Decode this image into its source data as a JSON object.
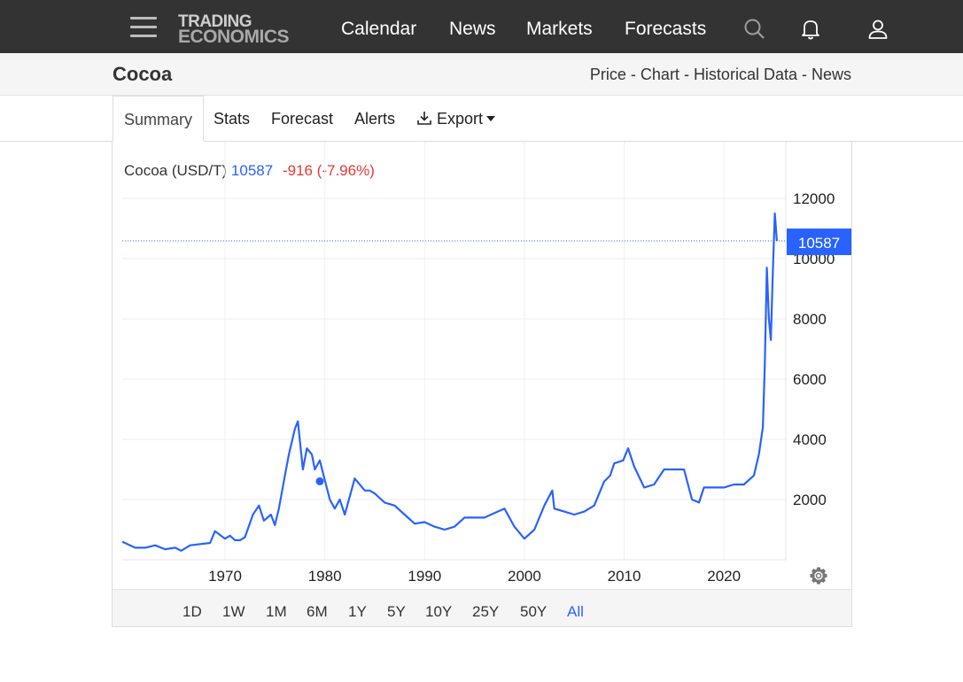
{
  "nav": {
    "menu_icon": "hamburger-menu-icon",
    "logo_top": "TRADING",
    "logo_bottom": "ECONOMICS",
    "links": [
      "Calendar",
      "News",
      "Markets",
      "Forecasts"
    ],
    "icons": [
      "search-icon",
      "bell-icon",
      "user-icon"
    ]
  },
  "header": {
    "title": "Cocoa",
    "links": [
      "Price",
      "Chart",
      "Historical Data",
      "News"
    ],
    "separator": " - "
  },
  "tabs": {
    "summary": "Summary",
    "stats": "Stats",
    "forecast": "Forecast",
    "alerts": "Alerts",
    "export": "Export"
  },
  "legend": {
    "name": "Cocoa (USD/T)",
    "value": "10587",
    "change": "-916 (-7.96%)"
  },
  "colors": {
    "series": "#2962ff",
    "negative": "#e53935",
    "nav_bg": "#333333"
  },
  "ranges": [
    "1D",
    "1W",
    "1M",
    "6M",
    "1Y",
    "5Y",
    "10Y",
    "25Y",
    "50Y",
    "All"
  ],
  "active_range": "All",
  "chart_data": {
    "type": "line",
    "title": "",
    "xlabel": "",
    "ylabel": "",
    "x_ticks": [
      "1970",
      "1980",
      "1990",
      "2000",
      "2010",
      "2020"
    ],
    "y_ticks": [
      2000,
      4000,
      6000,
      8000,
      10000,
      12000
    ],
    "xlim": [
      1959.7,
      2026.2
    ],
    "ylim": [
      0,
      12000
    ],
    "y_axis_position": "right",
    "grid": true,
    "last_value_label": "10587",
    "series": [
      {
        "x": [
          1959.7,
          1961,
          1962,
          1963,
          1964,
          1965,
          1965.6,
          1966.5,
          1967.5,
          1968.5,
          1969,
          1970,
          1970.5,
          1971,
          1971.5,
          1972,
          1972.8,
          1973.4,
          1973.9,
          1974.6,
          1975,
          1975.4,
          1976,
          1976.4,
          1977,
          1977.3,
          1977.8,
          1978.2,
          1978.7,
          1979,
          1979.5,
          1979.8,
          1980.5,
          1981,
          1981.5,
          1982,
          1983,
          1984,
          1984.5,
          1985,
          1986,
          1987,
          1988,
          1989,
          1990,
          1991,
          1992,
          1993,
          1994,
          1995,
          1996,
          1997,
          1998,
          1999,
          2000,
          2001,
          2002,
          2002.8,
          2003,
          2004,
          2005,
          2006,
          2007,
          2008,
          2008.6,
          2009,
          2009.9,
          2010.4,
          2011,
          2012,
          2013,
          2014,
          2015,
          2016,
          2016.8,
          2017.5,
          2018,
          2019,
          2020,
          2021,
          2022,
          2023,
          2023.5,
          2023.9,
          2024.1,
          2024.3,
          2024.5,
          2024.7,
          2024.9,
          2025.1,
          2025.3
        ],
        "values": [
          600,
          400,
          400,
          480,
          350,
          400,
          300,
          480,
          520,
          560,
          950,
          700,
          800,
          650,
          650,
          750,
          1500,
          1800,
          1300,
          1500,
          1150,
          1700,
          2800,
          3500,
          4350,
          4600,
          3000,
          3700,
          3500,
          3000,
          3300,
          2900,
          2000,
          1700,
          2000,
          1500,
          2700,
          2300,
          2300,
          2200,
          1900,
          1800,
          1500,
          1200,
          1250,
          1100,
          1000,
          1100,
          1400,
          1400,
          1400,
          1550,
          1700,
          1100,
          700,
          1000,
          1800,
          2300,
          1700,
          1600,
          1500,
          1600,
          1800,
          2600,
          2800,
          3200,
          3300,
          3700,
          3100,
          2400,
          2500,
          3000,
          3000,
          3000,
          2000,
          1900,
          2400,
          2400,
          2400,
          2500,
          2500,
          2800,
          3500,
          4400,
          6500,
          9700,
          8000,
          7300,
          9600,
          11500,
          10587
        ]
      }
    ]
  }
}
